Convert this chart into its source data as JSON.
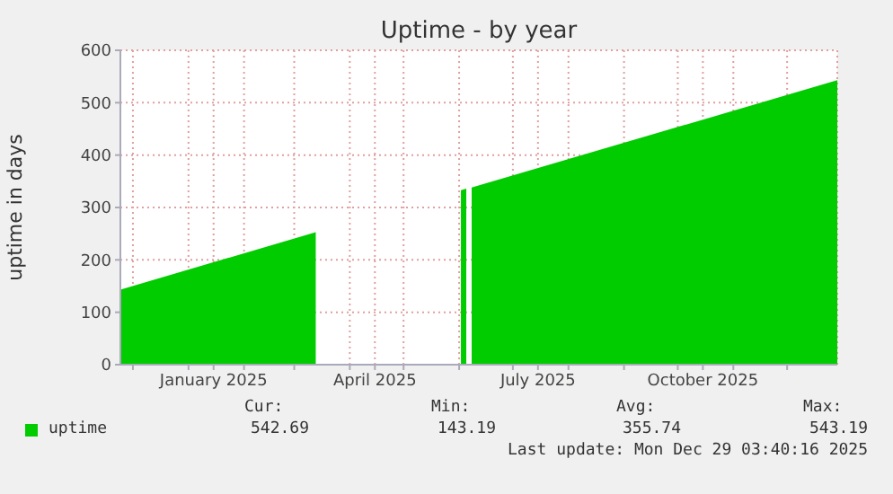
{
  "chart_data": {
    "type": "area",
    "title": "Uptime - by year",
    "ylabel": "uptime in days",
    "x": [
      "2024-11-24",
      "2025-03-13",
      "2025-03-14",
      "2025-06-01",
      "2025-06-02",
      "2025-06-05",
      "2025-06-06",
      "2025-06-07",
      "2025-06-08",
      "2025-12-29"
    ],
    "series": [
      {
        "name": "uptime",
        "color": "#00cc00",
        "values": [
          143,
          253,
          null,
          null,
          333,
          336,
          null,
          null,
          338,
          543
        ]
      }
    ],
    "xlim": [
      "2024-11-24",
      "2025-12-29"
    ],
    "xticks": [
      {
        "value": "2024-12-01",
        "label": null
      },
      {
        "value": "2025-01-01",
        "label": null
      },
      {
        "value": "2025-01-15",
        "label": "January 2025"
      },
      {
        "value": "2025-02-01",
        "label": null
      },
      {
        "value": "2025-03-01",
        "label": null
      },
      {
        "value": "2025-04-01",
        "label": null
      },
      {
        "value": "2025-04-15",
        "label": "April 2025"
      },
      {
        "value": "2025-05-01",
        "label": null
      },
      {
        "value": "2025-06-01",
        "label": null
      },
      {
        "value": "2025-07-01",
        "label": null
      },
      {
        "value": "2025-07-15",
        "label": "July 2025"
      },
      {
        "value": "2025-08-01",
        "label": null
      },
      {
        "value": "2025-09-01",
        "label": null
      },
      {
        "value": "2025-10-01",
        "label": null
      },
      {
        "value": "2025-10-15",
        "label": "October 2025"
      },
      {
        "value": "2025-11-01",
        "label": null
      },
      {
        "value": "2025-12-01",
        "label": null
      }
    ],
    "ylim": [
      0,
      600
    ],
    "yticks": [
      0,
      100,
      200,
      300,
      400,
      500,
      600
    ],
    "grid": true,
    "legend": "bottom left",
    "annotations": [
      "Cur:",
      "542.69",
      "Min:",
      "143.19",
      "Avg:",
      "355.74",
      "Max:",
      "543.19",
      "Last update: Mon Dec 29 03:40:16 2025"
    ]
  }
}
